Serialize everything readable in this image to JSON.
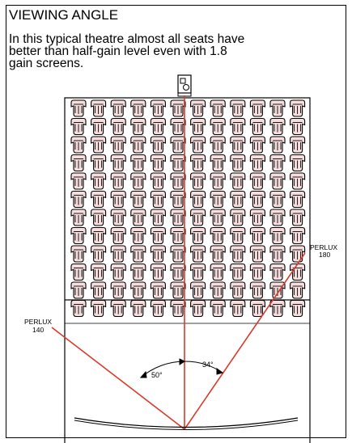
{
  "heading": {
    "title": "VIEWING ANGLE"
  },
  "caption": {
    "text": "In this typical theatre almost all seats have better than half-gain level even with 1.8 gain screens."
  },
  "diagram": {
    "seating": {
      "rows": 12,
      "seats_per_row": 12
    },
    "labels": {
      "left_screen_name": "PERLUX",
      "left_screen_gain": "140",
      "right_screen_name": "PERLUX",
      "right_screen_gain": "180",
      "left_angle": "50°",
      "right_angle": "34°"
    },
    "colors": {
      "sightline": "#d83a2c",
      "outline": "#000000",
      "seat_fill": "#f6dede"
    },
    "icons": {
      "projector": "projector-icon",
      "seat": "seat-icon",
      "screen": "curved-screen"
    }
  }
}
